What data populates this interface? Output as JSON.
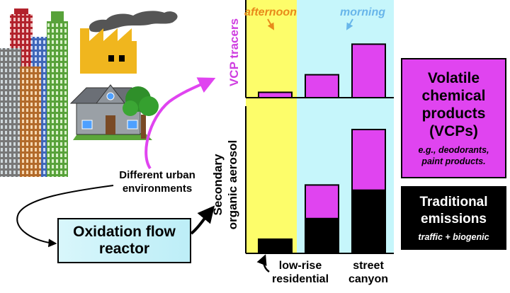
{
  "labels": {
    "time_afternoon": "afternoon",
    "time_morning": "morning",
    "vcp_axis": "VCP tracers",
    "soa_axis_line1": "Secondary",
    "soa_axis_line2": "organic aerosol",
    "env_line1": "Different urban",
    "env_line2": "environments",
    "ofr_line1": "Oxidation flow",
    "ofr_line2": "reactor",
    "lowrise_line1": "low-rise",
    "lowrise_line2": "residential",
    "canyon_line1": "street",
    "canyon_line2": "canyon"
  },
  "legend": {
    "vcp_title_line1": "Volatile",
    "vcp_title_line2": "chemical",
    "vcp_title_line3": "products",
    "vcp_title_line4": "(VCPs)",
    "vcp_examples_line1": "e.g., deodorants,",
    "vcp_examples_line2": "paint products.",
    "trad_title_line1": "Traditional",
    "trad_title_line2": "emissions",
    "trad_examples": "traffic + biogenic"
  },
  "colors": {
    "vcp": "#e044f0",
    "traditional": "#000000",
    "afternoon_band": "#fdfd6a",
    "morning_band": "#c6f6fb",
    "afternoon_text": "#e88a1a",
    "morning_text": "#68b6ea",
    "arrow_magenta": "#e044f0"
  },
  "chart_data": [
    {
      "type": "bar",
      "ylabel": "VCP tracers",
      "categories": [
        "low-rise residential",
        "",
        "street canyon"
      ],
      "values": [
        0.07,
        0.3,
        0.7
      ],
      "ylim": [
        0,
        1
      ]
    },
    {
      "type": "bar",
      "stacked": true,
      "ylabel": "Secondary organic aerosol",
      "categories": [
        "low-rise residential",
        "",
        "street canyon"
      ],
      "series": [
        {
          "values": [
            0.11,
            0.27,
            0.49
          ]
        },
        {
          "values": [
            0.0,
            0.26,
            0.47
          ]
        }
      ],
      "ylim": [
        0,
        1
      ]
    }
  ],
  "icons": {
    "buildings": "city-buildings-icon",
    "factory": "factory-icon",
    "house": "house-icon",
    "tree": "tree-icon"
  }
}
